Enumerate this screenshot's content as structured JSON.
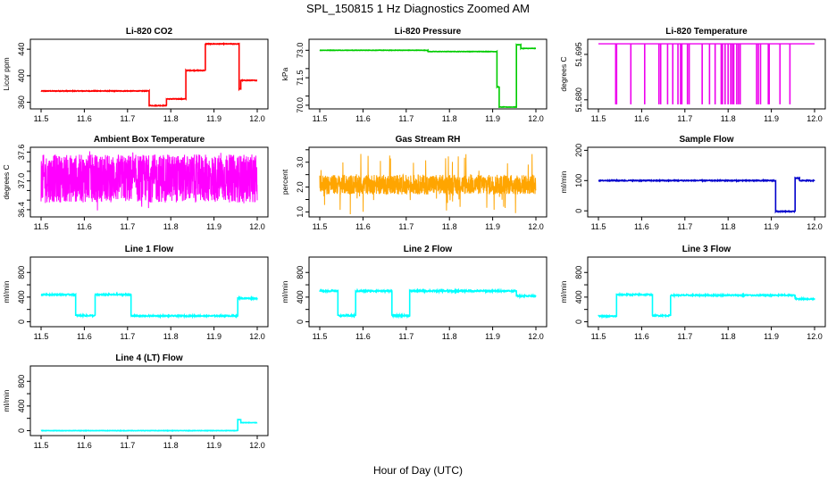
{
  "figure": {
    "title": "SPL_150815  1 Hz Diagnostics Zoomed AM",
    "xlabel": "Hour of Day (UTC)"
  },
  "chart_data": [
    {
      "type": "line",
      "title": "Li-820 CO2",
      "ylabel": "Licor ppm",
      "color": "#ff0000",
      "xlim": [
        11.5,
        12.0
      ],
      "ylim": [
        350,
        455
      ],
      "xticks": [
        11.5,
        11.6,
        11.7,
        11.8,
        11.9,
        12.0
      ],
      "xtick_labels": [
        "11.5",
        "11.6",
        "11.7",
        "11.8",
        "11.9",
        "12.0"
      ],
      "yticks": [
        360,
        400,
        440
      ],
      "ytick_labels": [
        "360",
        "400",
        "440"
      ],
      "noise": 0.5,
      "segments": [
        [
          11.5,
          11.75,
          377
        ],
        [
          11.75,
          11.79,
          355
        ],
        [
          11.79,
          11.835,
          365
        ],
        [
          11.835,
          11.88,
          408
        ],
        [
          11.88,
          11.958,
          448
        ],
        [
          11.958,
          11.962,
          380
        ],
        [
          11.962,
          12.0,
          393
        ]
      ]
    },
    {
      "type": "line",
      "title": "Li-820 Pressure",
      "ylabel": "kPa",
      "color": "#00cc00",
      "xlim": [
        11.5,
        12.0
      ],
      "ylim": [
        69.8,
        73.6
      ],
      "xticks": [
        11.5,
        11.6,
        11.7,
        11.8,
        11.9,
        12.0
      ],
      "xtick_labels": [
        "11.5",
        "11.6",
        "11.7",
        "11.8",
        "11.9",
        "12.0"
      ],
      "yticks": [
        70.0,
        70.5,
        71.5,
        72.0,
        73.0
      ],
      "ytick_labels": [
        "70.0",
        "71.5",
        "73.0"
      ],
      "ytick_label_values": [
        70.0,
        71.5,
        73.0
      ],
      "noise": 0.01,
      "segments": [
        [
          11.5,
          11.75,
          73.0
        ],
        [
          11.75,
          11.91,
          72.93
        ],
        [
          11.91,
          11.915,
          71.0
        ],
        [
          11.915,
          11.955,
          69.9
        ],
        [
          11.955,
          11.965,
          73.3
        ],
        [
          11.965,
          12.0,
          73.1
        ]
      ]
    },
    {
      "type": "line",
      "title": "Li-820 Temperature",
      "ylabel": "degrees C",
      "color": "#ee00ee",
      "xlim": [
        11.5,
        12.0
      ],
      "ylim": [
        51.677,
        51.7
      ],
      "xticks": [
        11.5,
        11.6,
        11.7,
        11.8,
        11.9,
        12.0
      ],
      "xtick_labels": [
        "11.5",
        "11.6",
        "11.7",
        "11.8",
        "11.9",
        "12.0"
      ],
      "yticks": [
        51.68,
        51.695
      ],
      "ytick_labels": [
        "51.680",
        "51.695"
      ],
      "baseline": 51.6985,
      "low": 51.6785,
      "spikes": [
        11.54,
        11.542,
        11.575,
        11.607,
        11.64,
        11.644,
        11.66,
        11.672,
        11.684,
        11.69,
        11.693,
        11.706,
        11.71,
        11.74,
        11.757,
        11.77,
        11.784,
        11.787,
        11.793,
        11.8,
        11.806,
        11.81,
        11.813,
        11.82,
        11.824,
        11.828,
        11.866,
        11.87,
        11.875,
        11.893,
        11.895,
        11.92,
        11.943
      ]
    },
    {
      "type": "line",
      "title": "Ambient Box Temperature",
      "ylabel": "degrees C",
      "color": "#ff00ff",
      "xlim": [
        11.5,
        12.0
      ],
      "ylim": [
        36.25,
        37.7
      ],
      "xticks": [
        11.5,
        11.6,
        11.7,
        11.8,
        11.9,
        12.0
      ],
      "xtick_labels": [
        "11.5",
        "11.6",
        "11.7",
        "11.8",
        "11.9",
        "12.0"
      ],
      "yticks": [
        36.4,
        36.6,
        36.8,
        37.0,
        37.2,
        37.4,
        37.6
      ],
      "ytick_labels": [
        "36.4",
        "37.0",
        "37.6"
      ],
      "ytick_label_values": [
        36.4,
        37.0,
        37.6
      ],
      "band": [
        36.55,
        37.55
      ],
      "spike_range": [
        36.3,
        37.65
      ]
    },
    {
      "type": "line",
      "title": "Gas Stream RH",
      "ylabel": "percent",
      "color": "#ffa500",
      "xlim": [
        11.5,
        12.0
      ],
      "ylim": [
        0.8,
        3.6
      ],
      "xticks": [
        11.5,
        11.6,
        11.7,
        11.8,
        11.9,
        12.0
      ],
      "xtick_labels": [
        "11.5",
        "11.6",
        "11.7",
        "11.8",
        "11.9",
        "12.0"
      ],
      "yticks": [
        1.0,
        1.5,
        2.0,
        2.5,
        3.0,
        3.5
      ],
      "ytick_labels": [
        "1.0",
        "2.0",
        "3.0"
      ],
      "ytick_label_values": [
        1.0,
        2.0,
        3.0
      ],
      "band": [
        1.7,
        2.5
      ],
      "spike_range": [
        0.9,
        3.4
      ]
    },
    {
      "type": "line",
      "title": "Sample Flow",
      "ylabel": "ml/min",
      "color": "#0000cc",
      "xlim": [
        11.5,
        12.0
      ],
      "ylim": [
        -20,
        210
      ],
      "xticks": [
        11.5,
        11.6,
        11.7,
        11.8,
        11.9,
        12.0
      ],
      "xtick_labels": [
        "11.5",
        "11.6",
        "11.7",
        "11.8",
        "11.9",
        "12.0"
      ],
      "yticks": [
        0,
        100,
        200
      ],
      "ytick_labels": [
        "0",
        "100",
        "200"
      ],
      "noise": 1.5,
      "segments": [
        [
          11.5,
          11.91,
          100
        ],
        [
          11.91,
          11.955,
          -2
        ],
        [
          11.955,
          11.965,
          108
        ],
        [
          11.965,
          12.0,
          100
        ]
      ]
    },
    {
      "type": "line",
      "title": "Line 1 Flow",
      "ylabel": "ml/min",
      "color": "#00ffff",
      "xlim": [
        11.5,
        12.0
      ],
      "ylim": [
        -80,
        1050
      ],
      "xticks": [
        11.5,
        11.6,
        11.7,
        11.8,
        11.9,
        12.0
      ],
      "xtick_labels": [
        "11.5",
        "11.6",
        "11.7",
        "11.8",
        "11.9",
        "12.0"
      ],
      "yticks": [
        0,
        200,
        400,
        600,
        800
      ],
      "ytick_labels": [
        "0",
        "400",
        "800"
      ],
      "ytick_label_values": [
        0,
        400,
        800
      ],
      "noise": 10,
      "segments": [
        [
          11.5,
          11.58,
          440
        ],
        [
          11.58,
          11.625,
          100
        ],
        [
          11.625,
          11.708,
          440
        ],
        [
          11.708,
          11.955,
          95
        ],
        [
          11.955,
          12.0,
          380
        ]
      ]
    },
    {
      "type": "line",
      "title": "Line 2 Flow",
      "ylabel": "ml/min",
      "color": "#00ffff",
      "xlim": [
        11.5,
        12.0
      ],
      "ylim": [
        -80,
        1050
      ],
      "xticks": [
        11.5,
        11.6,
        11.7,
        11.8,
        11.9,
        12.0
      ],
      "xtick_labels": [
        "11.5",
        "11.6",
        "11.7",
        "11.8",
        "11.9",
        "12.0"
      ],
      "yticks": [
        0,
        200,
        400,
        600,
        800
      ],
      "ytick_labels": [
        "0",
        "400",
        "800"
      ],
      "ytick_label_values": [
        0,
        400,
        800
      ],
      "noise": 12,
      "segments": [
        [
          11.5,
          11.542,
          500
        ],
        [
          11.542,
          11.583,
          100
        ],
        [
          11.583,
          11.667,
          500
        ],
        [
          11.667,
          11.708,
          100
        ],
        [
          11.708,
          11.955,
          500
        ],
        [
          11.955,
          12.0,
          420
        ]
      ]
    },
    {
      "type": "line",
      "title": "Line 3 Flow",
      "ylabel": "ml/min",
      "color": "#00ffff",
      "xlim": [
        11.5,
        12.0
      ],
      "ylim": [
        -80,
        1050
      ],
      "xticks": [
        11.5,
        11.6,
        11.7,
        11.8,
        11.9,
        12.0
      ],
      "xtick_labels": [
        "11.5",
        "11.6",
        "11.7",
        "11.8",
        "11.9",
        "12.0"
      ],
      "yticks": [
        0,
        200,
        400,
        600,
        800
      ],
      "ytick_labels": [
        "0",
        "400",
        "800"
      ],
      "ytick_label_values": [
        0,
        400,
        800
      ],
      "noise": 10,
      "segments": [
        [
          11.5,
          11.542,
          90
        ],
        [
          11.542,
          11.625,
          440
        ],
        [
          11.625,
          11.667,
          100
        ],
        [
          11.667,
          11.955,
          430
        ],
        [
          11.955,
          12.0,
          370
        ]
      ]
    },
    {
      "type": "line",
      "title": "Line 4 (LT) Flow",
      "ylabel": "ml/min",
      "color": "#00ffff",
      "xlim": [
        11.5,
        12.0
      ],
      "ylim": [
        -80,
        1050
      ],
      "xticks": [
        11.5,
        11.6,
        11.7,
        11.8,
        11.9,
        12.0
      ],
      "xtick_labels": [
        "11.5",
        "11.6",
        "11.7",
        "11.8",
        "11.9",
        "12.0"
      ],
      "yticks": [
        0,
        200,
        400,
        600,
        800
      ],
      "ytick_labels": [
        "0",
        "400",
        "800"
      ],
      "ytick_label_values": [
        0,
        400,
        800
      ],
      "noise": 3,
      "segments": [
        [
          11.5,
          11.955,
          0
        ],
        [
          11.955,
          11.962,
          180
        ],
        [
          11.962,
          12.0,
          130
        ]
      ]
    }
  ]
}
